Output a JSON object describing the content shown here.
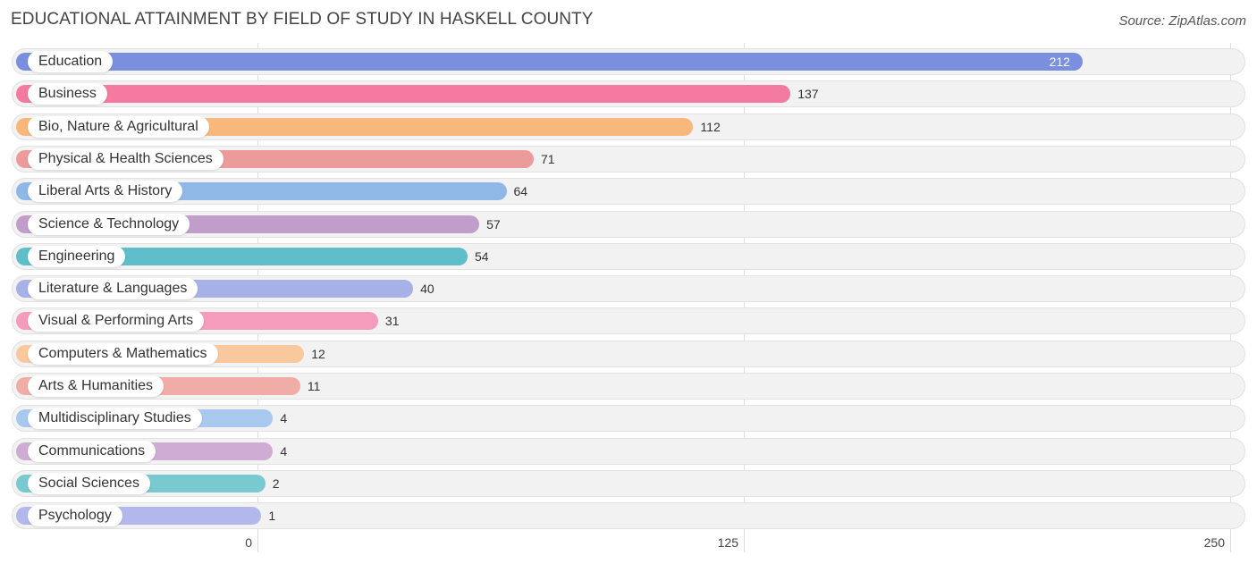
{
  "title": "EDUCATIONAL ATTAINMENT BY FIELD OF STUDY IN HASKELL COUNTY",
  "source": "Source: ZipAtlas.com",
  "chart_data": {
    "type": "bar",
    "orientation": "horizontal",
    "title": "EDUCATIONAL ATTAINMENT BY FIELD OF STUDY IN HASKELL COUNTY",
    "categories": [
      "Education",
      "Business",
      "Bio, Nature & Agricultural",
      "Physical & Health Sciences",
      "Liberal Arts & History",
      "Science & Technology",
      "Engineering",
      "Literature & Languages",
      "Visual & Performing Arts",
      "Computers & Mathematics",
      "Arts & Humanities",
      "Multidisciplinary Studies",
      "Communications",
      "Social Sciences",
      "Psychology"
    ],
    "values": [
      212,
      137,
      112,
      71,
      64,
      57,
      54,
      40,
      31,
      12,
      11,
      4,
      4,
      2,
      1
    ],
    "value_labels": [
      "212",
      "137",
      "112",
      "71",
      "64",
      "57",
      "54",
      "40",
      "31",
      "12",
      "11",
      "4",
      "4",
      "2",
      "1"
    ],
    "colors": [
      "#7b8fdf",
      "#f47aa2",
      "#f8b87c",
      "#eb9c9a",
      "#8fb8e6",
      "#c09ec9",
      "#5fbec9",
      "#a8b0e8",
      "#f59bbb",
      "#f9c89c",
      "#f0aca6",
      "#a8c8ee",
      "#cfacd4",
      "#78cad0",
      "#b2b8eb"
    ],
    "xlim": [
      0,
      250
    ],
    "xticks": [
      "0",
      "125",
      "250"
    ],
    "grid": true
  }
}
